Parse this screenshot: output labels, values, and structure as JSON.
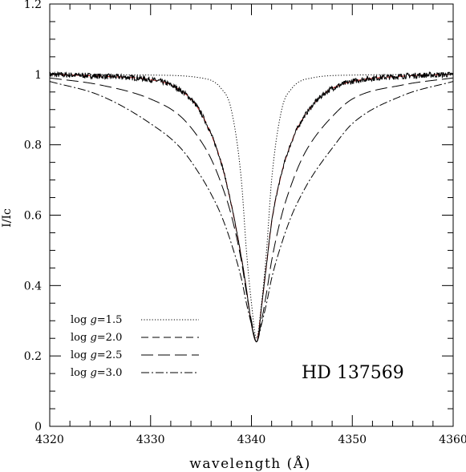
{
  "chart_data": {
    "type": "line",
    "title": "",
    "xlabel": "wavelength (Å)",
    "ylabel": "I/Ic",
    "xlim": [
      4320,
      4360
    ],
    "ylim": [
      0,
      1.2
    ],
    "xticks": [
      4320,
      4330,
      4340,
      4350,
      4360
    ],
    "yticks": [
      0,
      0.2,
      0.4,
      0.6,
      0.8,
      1,
      1.2
    ],
    "x_tick_labels": [
      "4320",
      "4330",
      "4340",
      "4350",
      "4360"
    ],
    "y_tick_labels": [
      "0",
      "0.2",
      "0.4",
      "0.6",
      "0.8",
      "1",
      "1.2"
    ],
    "annotation": "HD 137569",
    "line_center": 4340.5,
    "observed": {
      "color": "#000000",
      "noise_amplitude": 0.008,
      "x": [
        4320,
        4325,
        4330,
        4332,
        4334,
        4335,
        4336,
        4337,
        4338,
        4339,
        4339.5,
        4340,
        4340.3,
        4340.5,
        4340.7,
        4341,
        4341.5,
        4342,
        4343,
        4344,
        4345,
        4346,
        4347,
        4348,
        4350,
        4355,
        4360
      ],
      "y": [
        1.0,
        0.995,
        0.985,
        0.97,
        0.93,
        0.89,
        0.83,
        0.75,
        0.63,
        0.48,
        0.39,
        0.29,
        0.25,
        0.24,
        0.26,
        0.34,
        0.46,
        0.58,
        0.72,
        0.81,
        0.87,
        0.91,
        0.94,
        0.96,
        0.98,
        0.995,
        1.0
      ]
    },
    "series": [
      {
        "name": "log g=1.5",
        "label_parts": [
          "log ",
          "g",
          "=1.5"
        ],
        "color": "#000000",
        "dash": "1.2,2.2",
        "x": [
          4320,
          4330,
          4335,
          4337,
          4338,
          4339,
          4339.5,
          4340,
          4340.5,
          4341,
          4341.5,
          4342,
          4343,
          4344,
          4346,
          4350,
          4360
        ],
        "y": [
          1.0,
          0.998,
          0.99,
          0.96,
          0.9,
          0.7,
          0.5,
          0.35,
          0.25,
          0.35,
          0.5,
          0.7,
          0.9,
          0.96,
          0.99,
          0.998,
          1.0
        ]
      },
      {
        "name": "log g=2.0",
        "label_parts": [
          "log ",
          "g",
          "=2.0"
        ],
        "color": "#e0302e",
        "dash": "9,5",
        "x": [
          4320,
          4325,
          4330,
          4332,
          4334,
          4335,
          4336,
          4337,
          4338,
          4339,
          4339.5,
          4340,
          4340.5,
          4341,
          4341.5,
          4342,
          4343,
          4344,
          4345,
          4346,
          4347,
          4348,
          4350,
          4355,
          4360
        ],
        "y": [
          1.0,
          0.995,
          0.985,
          0.97,
          0.93,
          0.89,
          0.83,
          0.75,
          0.63,
          0.48,
          0.39,
          0.29,
          0.24,
          0.34,
          0.46,
          0.58,
          0.72,
          0.81,
          0.87,
          0.91,
          0.94,
          0.96,
          0.98,
          0.995,
          1.0
        ]
      },
      {
        "name": "log g=2.5",
        "label_parts": [
          "log ",
          "g",
          "=2.5"
        ],
        "color": "#000000",
        "dash": "15,6",
        "x": [
          4320,
          4325,
          4330,
          4333,
          4335,
          4336,
          4337,
          4338,
          4339,
          4339.5,
          4340,
          4340.5,
          4341,
          4341.5,
          4342,
          4343,
          4344,
          4345,
          4346,
          4348,
          4350,
          4355,
          4360
        ],
        "y": [
          0.99,
          0.97,
          0.93,
          0.88,
          0.81,
          0.76,
          0.69,
          0.6,
          0.47,
          0.38,
          0.3,
          0.24,
          0.3,
          0.38,
          0.47,
          0.6,
          0.69,
          0.76,
          0.81,
          0.88,
          0.93,
          0.97,
          0.99
        ]
      },
      {
        "name": "log g=3.0",
        "label_parts": [
          "log ",
          "g",
          "=3.0"
        ],
        "color": "#000000",
        "dash": "10,3,2,3",
        "x": [
          4320,
          4325,
          4330,
          4333,
          4335,
          4336,
          4337,
          4338,
          4339,
          4339.5,
          4340,
          4340.5,
          4341,
          4341.5,
          4342,
          4343,
          4344,
          4345,
          4346,
          4348,
          4350,
          4355,
          4360
        ],
        "y": [
          0.98,
          0.94,
          0.86,
          0.79,
          0.71,
          0.66,
          0.6,
          0.52,
          0.42,
          0.35,
          0.29,
          0.24,
          0.29,
          0.35,
          0.42,
          0.52,
          0.6,
          0.66,
          0.71,
          0.79,
          0.86,
          0.94,
          0.98
        ]
      }
    ],
    "grid": false,
    "legend": {
      "position": "bottom-left",
      "frame": false
    }
  }
}
